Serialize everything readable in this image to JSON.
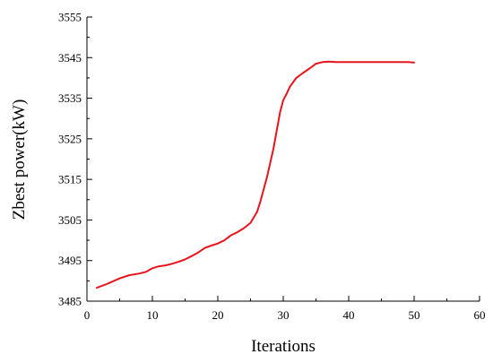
{
  "chart_data": {
    "type": "line",
    "title": "",
    "xlabel": "Iterations",
    "ylabel": "Zbest power(kW)",
    "xlim": [
      0,
      60
    ],
    "ylim": [
      3485,
      3555
    ],
    "xticks": [
      0,
      10,
      20,
      30,
      40,
      50,
      60
    ],
    "yticks": [
      3485,
      3495,
      3505,
      3515,
      3525,
      3535,
      3545,
      3555
    ],
    "grid": false,
    "legend": "none",
    "series": [
      {
        "color": "#e8141b",
        "x": [
          1.5,
          3,
          5,
          6.5,
          8,
          9,
          10,
          11,
          12,
          13,
          14,
          15,
          16,
          17,
          18,
          19,
          20,
          21,
          22,
          23,
          24,
          25,
          26,
          26.5,
          27,
          27.5,
          28,
          28.5,
          29,
          29.5,
          30,
          30.5,
          31,
          32,
          33,
          34,
          35,
          36,
          37,
          38,
          40,
          45,
          49,
          50
        ],
        "y": [
          3488.3,
          3489.2,
          3490.6,
          3491.4,
          3491.8,
          3492.2,
          3493.1,
          3493.6,
          3493.8,
          3494.2,
          3494.7,
          3495.3,
          3496.1,
          3497.0,
          3498.1,
          3498.7,
          3499.2,
          3500.0,
          3501.2,
          3502.0,
          3503.0,
          3504.3,
          3507.0,
          3509.5,
          3512.5,
          3515.5,
          3519.0,
          3522.5,
          3527.0,
          3531.5,
          3534.5,
          3536.0,
          3537.8,
          3540.0,
          3541.2,
          3542.3,
          3543.5,
          3543.9,
          3544.0,
          3543.9,
          3543.9,
          3543.9,
          3543.9,
          3543.8
        ]
      }
    ]
  }
}
